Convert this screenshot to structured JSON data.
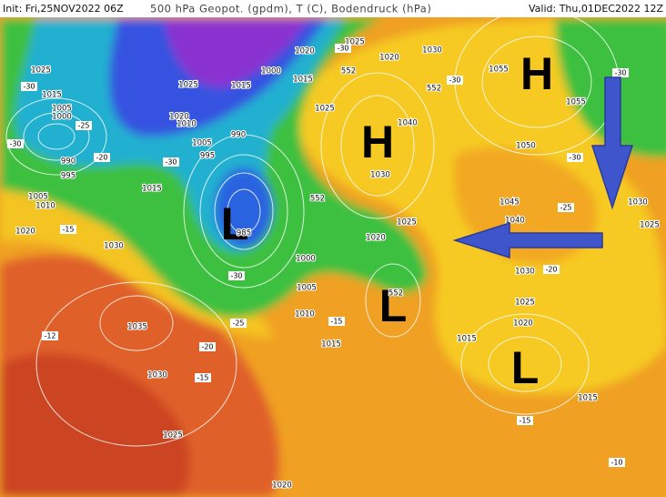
{
  "header": {
    "init": "Init: Fri,25NOV2022 06Z",
    "title": "500 hPa Geopot. (gpdm), T (C), Bodendruck (hPa)",
    "valid": "Valid: Thu,01DEC2022 12Z"
  },
  "centers": [
    "H",
    "H",
    "L",
    "L",
    "L"
  ],
  "isobar_labels": [
    "1025",
    "1015",
    "1005",
    "1000",
    "990",
    "995",
    "1005",
    "1010",
    "1020",
    "1030",
    "1025",
    "1020",
    "1010",
    "1015",
    "1005",
    "995",
    "990",
    "985",
    "1015",
    "1000",
    "1020",
    "1025",
    "1020",
    "1030",
    "1015",
    "1025",
    "1040",
    "1030",
    "1025",
    "1020",
    "1000",
    "1005",
    "1010",
    "1015",
    "1035",
    "1030",
    "1025",
    "1020",
    "1015",
    "1055",
    "1055",
    "1050",
    "1045",
    "1040",
    "1030",
    "1025",
    "1030",
    "1025",
    "1020",
    "1015"
  ],
  "temperature_labels": [
    "-30",
    "-25",
    "-30",
    "-20",
    "-15",
    "-30",
    "-30",
    "-25",
    "-20",
    "-15",
    "-15",
    "-12",
    "-30",
    "-30",
    "-25",
    "-20",
    "-15",
    "-10",
    "-30",
    "-30"
  ],
  "geopotential_labels": [
    "552",
    "552",
    "552",
    "552"
  ]
}
